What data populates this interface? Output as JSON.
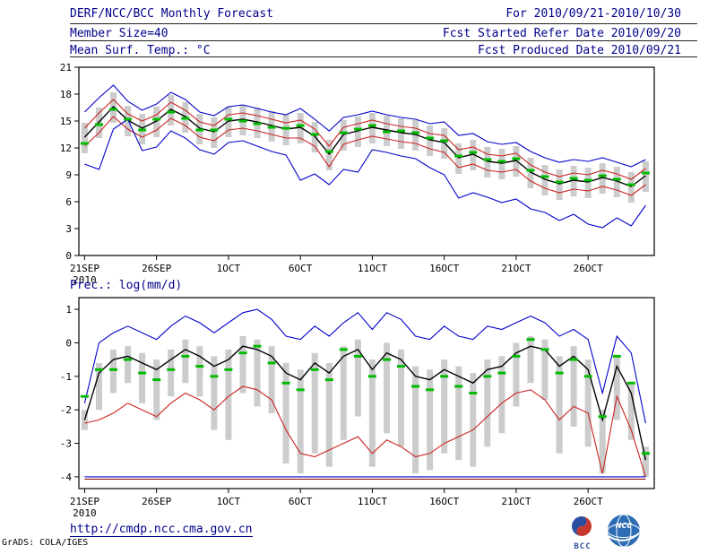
{
  "header": {
    "title": "DERF/NCC/BCC Monthly Forecast",
    "member_size": "Member Size=40",
    "for_range": "For 2010/09/21-2010/10/30",
    "fcst_started": "Fcst Started Refer Date 2010/09/20",
    "fcst_produced": "Fcst Produced Date 2010/09/21"
  },
  "panels": {
    "temperature_label": "Mean Surf. Temp.: °C",
    "precip_label": "Prec.: log(mm/d)"
  },
  "footer": {
    "url": "http://cmdp.ncc.cma.gov.cn",
    "grads_credit": "GrADS: COLA/IGES",
    "bcc_logo_text": "BCC",
    "ncc_logo_text": "NCC"
  },
  "colors": {
    "header_text": "#00008b",
    "envelope_blue": "#0000cc",
    "spread_red": "#cc2222",
    "mean_black": "#000000",
    "median_green": "#00bb00",
    "bar_gray": "#cccccc",
    "floor_dark_red": "#8b0000"
  },
  "chart_data": [
    {
      "type": "line",
      "title": "Mean Surf. Temp.: °C",
      "ylabel": "°C",
      "ylim": [
        0,
        21
      ],
      "yticks": [
        0,
        3,
        6,
        9,
        12,
        15,
        18,
        21
      ],
      "n_points": 40,
      "x_tick_labels": [
        "21SEP",
        "26SEP",
        "1OCT",
        "6OCT",
        "11OCT",
        "16OCT",
        "21OCT",
        "26OCT"
      ],
      "x_tick_indices": [
        0,
        5,
        10,
        15,
        20,
        25,
        30,
        35
      ],
      "x_year_label": "2010",
      "grid": false,
      "legend": "none",
      "bars": {
        "name": "member-spread-bar",
        "color_key": "bar_gray",
        "top": [
          14.8,
          16.5,
          18.2,
          16.7,
          15.8,
          16.6,
          17.9,
          17.1,
          15.8,
          15.4,
          16.6,
          16.8,
          16.5,
          16.1,
          15.7,
          15.9,
          14.9,
          12.9,
          15.1,
          15.5,
          15.9,
          15.6,
          15.3,
          15.1,
          14.5,
          14.2,
          12.5,
          12.9,
          12.1,
          11.9,
          12.2,
          10.9,
          10.1,
          9.6,
          10.0,
          9.8,
          10.3,
          9.9,
          9.3,
          10.5
        ],
        "bottom": [
          11.4,
          13.1,
          14.8,
          13.3,
          12.4,
          13.2,
          14.5,
          13.7,
          12.4,
          12.0,
          13.2,
          13.4,
          13.1,
          12.7,
          12.3,
          12.5,
          11.5,
          9.5,
          11.7,
          12.1,
          12.5,
          12.2,
          11.9,
          11.7,
          11.1,
          10.8,
          9.1,
          9.5,
          8.7,
          8.5,
          8.8,
          7.5,
          6.7,
          6.2,
          6.6,
          6.4,
          6.9,
          6.5,
          5.9,
          7.1
        ]
      },
      "markers": {
        "name": "ensemble-median",
        "color_key": "median_green",
        "values": [
          12.5,
          14.6,
          16.3,
          15.2,
          14.0,
          15.2,
          16.0,
          15.3,
          14.0,
          14.0,
          15.2,
          15.0,
          14.7,
          14.3,
          14.2,
          14.5,
          13.5,
          11.6,
          13.7,
          14.1,
          14.5,
          13.8,
          13.9,
          13.7,
          13.1,
          12.8,
          11.1,
          11.5,
          10.7,
          10.5,
          10.8,
          9.5,
          8.8,
          8.2,
          8.6,
          8.4,
          8.9,
          8.5,
          7.9,
          9.2
        ]
      },
      "series": [
        {
          "name": "ensemble-max",
          "color_key": "envelope_blue",
          "values": [
            16.0,
            17.6,
            19.0,
            17.2,
            16.2,
            16.9,
            18.2,
            17.4,
            16.0,
            15.6,
            16.6,
            16.8,
            16.4,
            16.0,
            15.7,
            16.4,
            15.2,
            13.9,
            15.4,
            15.7,
            16.1,
            15.7,
            15.4,
            15.2,
            14.7,
            14.9,
            13.4,
            13.6,
            12.7,
            12.4,
            12.6,
            11.6,
            10.9,
            10.4,
            10.7,
            10.5,
            10.9,
            10.4,
            9.9,
            10.7
          ]
        },
        {
          "name": "upper-spread",
          "color_key": "spread_red",
          "values": [
            14.2,
            15.9,
            17.4,
            15.8,
            15.0,
            15.7,
            17.1,
            16.2,
            14.9,
            14.5,
            15.7,
            15.9,
            15.6,
            15.2,
            14.8,
            15.1,
            14.1,
            12.2,
            14.3,
            14.7,
            15.1,
            14.7,
            14.4,
            14.2,
            13.6,
            13.4,
            11.8,
            12.1,
            11.3,
            11.1,
            11.4,
            10.1,
            9.3,
            8.8,
            9.2,
            9.0,
            9.5,
            9.1,
            8.5,
            9.7
          ]
        },
        {
          "name": "ensemble-mean",
          "color_key": "mean_black",
          "width": 1.4,
          "values": [
            13.2,
            14.9,
            16.6,
            15.1,
            14.2,
            15.0,
            16.3,
            15.5,
            14.2,
            13.8,
            15.0,
            15.2,
            14.9,
            14.5,
            14.1,
            14.3,
            13.3,
            11.3,
            13.5,
            13.9,
            14.3,
            14.0,
            13.7,
            13.5,
            12.9,
            12.6,
            10.9,
            11.3,
            10.5,
            10.3,
            10.6,
            9.3,
            8.5,
            8.0,
            8.4,
            8.2,
            8.7,
            8.3,
            7.7,
            8.9
          ]
        },
        {
          "name": "lower-spread",
          "color_key": "spread_red",
          "values": [
            12.2,
            13.7,
            15.5,
            14.1,
            13.2,
            14.0,
            15.3,
            14.5,
            13.2,
            12.8,
            14.0,
            14.2,
            13.9,
            13.5,
            13.1,
            13.1,
            12.2,
            9.9,
            12.4,
            12.9,
            13.3,
            13.0,
            12.7,
            12.5,
            11.9,
            11.5,
            9.8,
            10.2,
            9.5,
            9.3,
            9.6,
            8.3,
            7.5,
            7.0,
            7.4,
            7.2,
            7.7,
            7.3,
            6.7,
            7.9
          ]
        },
        {
          "name": "ensemble-min",
          "color_key": "envelope_blue",
          "values": [
            10.2,
            9.6,
            14.1,
            15.2,
            11.7,
            12.1,
            13.9,
            13.1,
            11.8,
            11.3,
            12.6,
            12.8,
            12.2,
            11.6,
            11.2,
            8.4,
            9.1,
            7.9,
            9.6,
            9.3,
            11.8,
            11.5,
            11.1,
            10.8,
            9.8,
            9.0,
            6.4,
            7.0,
            6.5,
            5.9,
            6.3,
            5.2,
            4.8,
            3.9,
            4.6,
            3.5,
            3.1,
            4.2,
            3.3,
            5.6
          ]
        }
      ]
    },
    {
      "type": "line",
      "title": "Prec.: log(mm/d)",
      "ylabel": "log(mm/d)",
      "ylim": [
        -4,
        1
      ],
      "yticks": [
        -4,
        -3,
        -2,
        -1,
        0,
        1
      ],
      "n_points": 40,
      "x_tick_labels": [
        "21SEP",
        "26SEP",
        "1OCT",
        "6OCT",
        "11OCT",
        "16OCT",
        "21OCT",
        "26OCT"
      ],
      "x_tick_indices": [
        0,
        5,
        10,
        15,
        20,
        25,
        30,
        35
      ],
      "x_year_label": "2010",
      "grid": false,
      "legend": "none",
      "bars": {
        "name": "member-spread-bar",
        "color_key": "bar_gray",
        "top": [
          -2.0,
          -0.6,
          -0.2,
          -0.1,
          -0.3,
          -0.5,
          -0.2,
          0.1,
          -0.1,
          -0.4,
          -0.2,
          0.2,
          0.1,
          -0.1,
          -0.6,
          -0.8,
          -0.3,
          -0.6,
          -0.1,
          0.1,
          -0.5,
          0.0,
          -0.2,
          -0.7,
          -0.8,
          -0.5,
          -0.7,
          -0.9,
          -0.5,
          -0.4,
          0.0,
          0.2,
          0.1,
          -0.4,
          -0.1,
          -0.5,
          -2.0,
          -0.4,
          -1.2,
          -3.1
        ],
        "bottom": [
          -2.6,
          -2.0,
          -1.5,
          -1.2,
          -1.8,
          -2.3,
          -1.6,
          -1.2,
          -1.6,
          -2.6,
          -2.9,
          -1.5,
          -1.9,
          -2.1,
          -3.6,
          -3.9,
          -3.3,
          -3.7,
          -2.9,
          -2.2,
          -3.7,
          -2.7,
          -3.1,
          -3.9,
          -3.8,
          -3.3,
          -3.5,
          -3.7,
          -3.1,
          -2.7,
          -1.9,
          -1.2,
          -1.7,
          -3.3,
          -2.5,
          -3.1,
          -3.9,
          -2.3,
          -2.9,
          -4.0
        ]
      },
      "markers": {
        "name": "ensemble-median",
        "color_key": "median_green",
        "values": [
          -1.6,
          -0.8,
          -0.8,
          -0.5,
          -0.9,
          -1.1,
          -0.8,
          -0.4,
          -0.7,
          -1.0,
          -0.8,
          -0.3,
          -0.1,
          -0.6,
          -1.2,
          -1.4,
          -0.8,
          -1.1,
          -0.2,
          -0.4,
          -1.0,
          -0.5,
          -0.7,
          -1.3,
          -1.4,
          -1.0,
          -1.3,
          -1.5,
          -1.0,
          -0.9,
          -0.4,
          0.1,
          -0.2,
          -0.9,
          -0.5,
          -1.0,
          -2.2,
          -0.4,
          -1.2,
          -3.3
        ]
      },
      "series": [
        {
          "name": "ensemble-max",
          "color_key": "envelope_blue",
          "values": [
            -1.8,
            0.0,
            0.3,
            0.5,
            0.3,
            0.1,
            0.5,
            0.8,
            0.6,
            0.3,
            0.6,
            0.9,
            1.0,
            0.7,
            0.2,
            0.1,
            0.5,
            0.2,
            0.6,
            0.9,
            0.4,
            0.9,
            0.7,
            0.2,
            0.1,
            0.5,
            0.2,
            0.1,
            0.5,
            0.4,
            0.6,
            0.8,
            0.6,
            0.2,
            0.4,
            0.1,
            -1.5,
            0.2,
            -0.3,
            -2.4
          ]
        },
        {
          "name": "ensemble-mean",
          "color_key": "mean_black",
          "width": 1.4,
          "values": [
            -2.3,
            -0.9,
            -0.5,
            -0.4,
            -0.6,
            -0.8,
            -0.5,
            -0.2,
            -0.4,
            -0.7,
            -0.5,
            -0.1,
            -0.2,
            -0.4,
            -0.9,
            -1.1,
            -0.6,
            -0.9,
            -0.4,
            -0.2,
            -0.8,
            -0.3,
            -0.5,
            -1.0,
            -1.1,
            -0.8,
            -1.0,
            -1.2,
            -0.8,
            -0.7,
            -0.3,
            -0.1,
            -0.2,
            -0.7,
            -0.4,
            -0.8,
            -2.3,
            -0.7,
            -1.5,
            -3.5
          ]
        },
        {
          "name": "lower-spread",
          "color_key": "spread_red",
          "values": [
            -2.4,
            -2.3,
            -2.1,
            -1.8,
            -2.0,
            -2.2,
            -1.8,
            -1.5,
            -1.7,
            -2.0,
            -1.6,
            -1.3,
            -1.4,
            -1.7,
            -2.6,
            -3.3,
            -3.4,
            -3.2,
            -3.0,
            -2.8,
            -3.3,
            -2.9,
            -3.1,
            -3.4,
            -3.3,
            -3.0,
            -2.8,
            -2.6,
            -2.2,
            -1.8,
            -1.5,
            -1.4,
            -1.7,
            -2.3,
            -1.9,
            -2.1,
            -3.9,
            -1.6,
            -2.6,
            -4.0
          ]
        },
        {
          "name": "floor-min-blue",
          "color_key": "envelope_blue",
          "constant": -4.0
        },
        {
          "name": "floor-min-red",
          "color_key": "floor_dark_red",
          "constant": -4.07
        }
      ]
    }
  ]
}
